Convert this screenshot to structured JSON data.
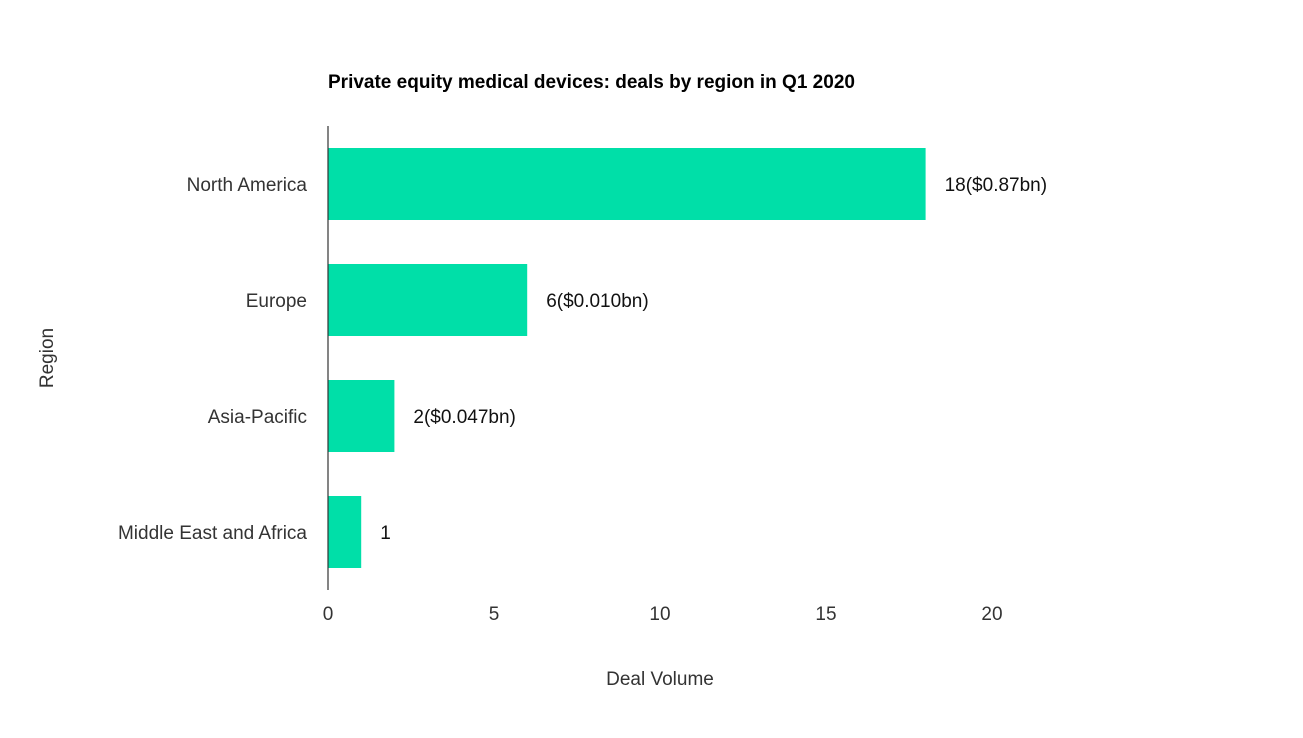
{
  "chart_data": {
    "type": "bar",
    "orientation": "horizontal",
    "title": "Private equity medical devices: deals by region in Q1 2020",
    "xlabel": "Deal Volume",
    "ylabel": "Region",
    "categories": [
      "North America",
      "Europe",
      "Asia-Pacific",
      "Middle East and Africa"
    ],
    "values": [
      18,
      6,
      2,
      1
    ],
    "data_labels": [
      "18($0.87bn)",
      "6($0.010bn)",
      "2($0.047bn)",
      "1"
    ],
    "xlim": [
      0,
      20
    ],
    "xticks": [
      0,
      5,
      10,
      15,
      20
    ],
    "grid": false,
    "legend": "none",
    "bar_color": "#00DFA8"
  }
}
